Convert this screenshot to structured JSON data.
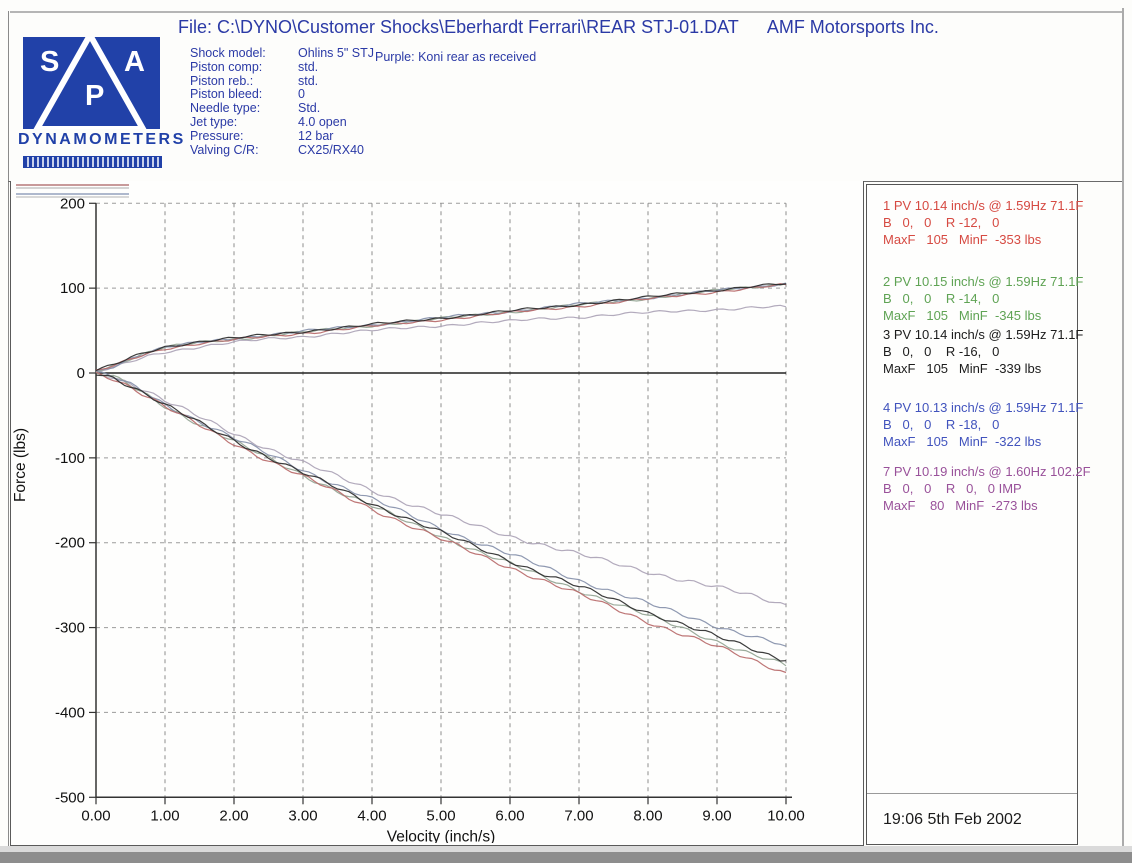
{
  "page": {
    "file_line": "File: C:\\DYNO\\Customer Shocks\\Eberhardt Ferrari\\REAR STJ-01.DAT",
    "company": "AMF Motorsports Inc.",
    "purple_note": "Purple: Koni rear as received",
    "timestamp": "19:06  5th Feb 2002"
  },
  "logo": {
    "letters": [
      "S",
      "P",
      "A"
    ],
    "subtitle": "DYNAMOMETERS",
    "blue": "#2141a8"
  },
  "shock_info": {
    "rows": [
      {
        "label": "Shock model:",
        "value": "Ohlins 5\" STJ"
      },
      {
        "label": "Piston comp:",
        "value": "std."
      },
      {
        "label": "Piston reb.:",
        "value": "std."
      },
      {
        "label": "Piston bleed:",
        "value": "0"
      },
      {
        "label": "Needle type:",
        "value": "Std."
      },
      {
        "label": "Jet type:",
        "value": "4.0 open"
      },
      {
        "label": "Pressure:",
        "value": "12 bar"
      },
      {
        "label": "Valving C/R:",
        "value": "CX25/RX40"
      }
    ]
  },
  "chart_data": {
    "type": "line",
    "title": "Shock dyno force vs velocity",
    "xlabel": "Velocity (inch/s)",
    "ylabel": "Force (lbs)",
    "xlim": [
      0,
      10
    ],
    "ylim": [
      -500,
      200
    ],
    "grid": "dashed",
    "legend_position": "right panel",
    "xtick_values": [
      0,
      1,
      2,
      3,
      4,
      5,
      6,
      7,
      8,
      9,
      10
    ],
    "xtick_labels": [
      "0.00",
      "1.00",
      "2.00",
      "3.00",
      "4.00",
      "5.00",
      "6.00",
      "7.00",
      "8.00",
      "9.00",
      "10.00"
    ],
    "ytick_values": [
      200,
      100,
      0,
      -100,
      -200,
      -300,
      -400,
      -500
    ],
    "ytick_labels": [
      "200",
      "100",
      "0",
      "-100",
      "-200",
      "-300",
      "-400",
      "-500"
    ],
    "series": [
      {
        "name": "1",
        "color_plot": "#b96a6a",
        "color_text": "#d64a42",
        "compression": [
          [
            0,
            2
          ],
          [
            0.25,
            8
          ],
          [
            0.5,
            16
          ],
          [
            0.75,
            23
          ],
          [
            1,
            29
          ],
          [
            1.5,
            35
          ],
          [
            2,
            39
          ],
          [
            2.5,
            43
          ],
          [
            3,
            47
          ],
          [
            3.5,
            51
          ],
          [
            4,
            55
          ],
          [
            4.5,
            59
          ],
          [
            5,
            63
          ],
          [
            5.5,
            67
          ],
          [
            6,
            71
          ],
          [
            6.5,
            75
          ],
          [
            7,
            79
          ],
          [
            7.5,
            83
          ],
          [
            8,
            87
          ],
          [
            8.5,
            92
          ],
          [
            9,
            96
          ],
          [
            9.5,
            100
          ],
          [
            10,
            104
          ]
        ],
        "rebound": [
          [
            0,
            0
          ],
          [
            0.25,
            -6
          ],
          [
            0.5,
            -16
          ],
          [
            0.75,
            -28
          ],
          [
            1,
            -40
          ],
          [
            1.5,
            -62
          ],
          [
            2,
            -83
          ],
          [
            2.5,
            -103
          ],
          [
            3,
            -122
          ],
          [
            3.5,
            -141
          ],
          [
            4,
            -160
          ],
          [
            4.5,
            -178
          ],
          [
            5,
            -196
          ],
          [
            5.5,
            -213
          ],
          [
            6,
            -229
          ],
          [
            6.5,
            -245
          ],
          [
            7,
            -261
          ],
          [
            7.5,
            -277
          ],
          [
            8,
            -293
          ],
          [
            8.5,
            -308
          ],
          [
            9,
            -323
          ],
          [
            9.5,
            -338
          ],
          [
            10,
            -353
          ]
        ]
      },
      {
        "name": "2",
        "color_plot": "#93a493",
        "color_text": "#5fa354",
        "compression": [
          [
            0,
            3
          ],
          [
            0.25,
            9
          ],
          [
            0.5,
            17
          ],
          [
            0.75,
            24
          ],
          [
            1,
            30
          ],
          [
            1.5,
            36
          ],
          [
            2,
            40
          ],
          [
            2.5,
            44
          ],
          [
            3,
            48
          ],
          [
            3.5,
            52
          ],
          [
            4,
            56
          ],
          [
            4.5,
            60
          ],
          [
            5,
            64
          ],
          [
            5.5,
            68
          ],
          [
            6,
            72
          ],
          [
            6.5,
            76
          ],
          [
            7,
            80
          ],
          [
            7.5,
            84
          ],
          [
            8,
            88
          ],
          [
            8.5,
            93
          ],
          [
            9,
            97
          ],
          [
            9.5,
            101
          ],
          [
            10,
            105
          ]
        ],
        "rebound": [
          [
            0,
            0
          ],
          [
            0.25,
            -5
          ],
          [
            0.5,
            -15
          ],
          [
            0.75,
            -27
          ],
          [
            1,
            -39
          ],
          [
            1.5,
            -60
          ],
          [
            2,
            -81
          ],
          [
            2.5,
            -101
          ],
          [
            3,
            -120
          ],
          [
            3.5,
            -139
          ],
          [
            4,
            -157
          ],
          [
            4.5,
            -175
          ],
          [
            5,
            -192
          ],
          [
            5.5,
            -209
          ],
          [
            6,
            -225
          ],
          [
            6.5,
            -241
          ],
          [
            7,
            -256
          ],
          [
            7.5,
            -271
          ],
          [
            8,
            -286
          ],
          [
            8.5,
            -301
          ],
          [
            9,
            -316
          ],
          [
            9.5,
            -331
          ],
          [
            10,
            -345
          ]
        ]
      },
      {
        "name": "3",
        "color_plot": "#2b2b2b",
        "color_text": "#1c1c1c",
        "compression": [
          [
            0,
            3
          ],
          [
            0.25,
            9
          ],
          [
            0.5,
            18
          ],
          [
            0.75,
            25
          ],
          [
            1,
            31
          ],
          [
            1.5,
            37
          ],
          [
            2,
            41
          ],
          [
            2.5,
            45
          ],
          [
            3,
            49
          ],
          [
            3.5,
            53
          ],
          [
            4,
            57
          ],
          [
            4.5,
            61
          ],
          [
            5,
            65
          ],
          [
            5.5,
            69
          ],
          [
            6,
            73
          ],
          [
            6.5,
            77
          ],
          [
            7,
            81
          ],
          [
            7.5,
            85
          ],
          [
            8,
            89
          ],
          [
            8.5,
            94
          ],
          [
            9,
            98
          ],
          [
            9.5,
            102
          ],
          [
            10,
            105
          ]
        ],
        "rebound": [
          [
            0,
            0
          ],
          [
            0.25,
            -5
          ],
          [
            0.5,
            -15
          ],
          [
            0.75,
            -26
          ],
          [
            1,
            -38
          ],
          [
            1.5,
            -59
          ],
          [
            2,
            -79
          ],
          [
            2.5,
            -99
          ],
          [
            3,
            -118
          ],
          [
            3.5,
            -136
          ],
          [
            4,
            -154
          ],
          [
            4.5,
            -171
          ],
          [
            5,
            -188
          ],
          [
            5.5,
            -205
          ],
          [
            6,
            -221
          ],
          [
            6.5,
            -237
          ],
          [
            7,
            -252
          ],
          [
            7.5,
            -267
          ],
          [
            8,
            -282
          ],
          [
            8.5,
            -296
          ],
          [
            9,
            -311
          ],
          [
            9.5,
            -325
          ],
          [
            10,
            -339
          ]
        ]
      },
      {
        "name": "4",
        "color_plot": "#8690aa",
        "color_text": "#4153bd",
        "compression": [
          [
            0,
            2
          ],
          [
            0.25,
            8
          ],
          [
            0.5,
            17
          ],
          [
            0.75,
            24
          ],
          [
            1,
            30
          ],
          [
            1.5,
            36
          ],
          [
            2,
            41
          ],
          [
            2.5,
            45
          ],
          [
            3,
            49
          ],
          [
            3.5,
            53
          ],
          [
            4,
            57
          ],
          [
            4.5,
            61
          ],
          [
            5,
            65
          ],
          [
            5.5,
            69
          ],
          [
            6,
            73
          ],
          [
            6.5,
            77
          ],
          [
            7,
            81
          ],
          [
            7.5,
            85
          ],
          [
            8,
            89
          ],
          [
            8.5,
            93
          ],
          [
            9,
            97
          ],
          [
            9.5,
            101
          ],
          [
            10,
            106
          ]
        ],
        "rebound": [
          [
            0,
            0
          ],
          [
            0.25,
            -5
          ],
          [
            0.5,
            -14
          ],
          [
            0.75,
            -25
          ],
          [
            1,
            -37
          ],
          [
            1.5,
            -57
          ],
          [
            2,
            -77
          ],
          [
            2.5,
            -96
          ],
          [
            3,
            -114
          ],
          [
            3.5,
            -132
          ],
          [
            4,
            -149
          ],
          [
            4.5,
            -166
          ],
          [
            5,
            -183
          ],
          [
            5.5,
            -199
          ],
          [
            6,
            -214
          ],
          [
            6.5,
            -229
          ],
          [
            7,
            -244
          ],
          [
            7.5,
            -258
          ],
          [
            8,
            -272
          ],
          [
            8.5,
            -285
          ],
          [
            9,
            -298
          ],
          [
            9.5,
            -310
          ],
          [
            10,
            -322
          ]
        ]
      },
      {
        "name": "7",
        "color_plot": "#aba3b6",
        "color_text": "#99519a",
        "compression": [
          [
            0,
            1
          ],
          [
            0.25,
            6
          ],
          [
            0.5,
            13
          ],
          [
            0.75,
            20
          ],
          [
            1,
            25
          ],
          [
            1.5,
            31
          ],
          [
            2,
            36
          ],
          [
            2.5,
            40
          ],
          [
            3,
            43
          ],
          [
            3.5,
            47
          ],
          [
            4,
            50
          ],
          [
            4.5,
            53
          ],
          [
            5,
            56
          ],
          [
            5.5,
            59
          ],
          [
            6,
            61
          ],
          [
            6.5,
            64
          ],
          [
            7,
            66
          ],
          [
            7.5,
            69
          ],
          [
            8,
            71
          ],
          [
            8.5,
            73
          ],
          [
            9,
            75
          ],
          [
            9.5,
            77
          ],
          [
            10,
            78
          ]
        ],
        "rebound": [
          [
            0,
            0
          ],
          [
            0.25,
            -4
          ],
          [
            0.5,
            -12
          ],
          [
            0.75,
            -22
          ],
          [
            1,
            -33
          ],
          [
            1.5,
            -52
          ],
          [
            2,
            -71
          ],
          [
            2.5,
            -89
          ],
          [
            3,
            -106
          ],
          [
            3.5,
            -122
          ],
          [
            4,
            -138
          ],
          [
            4.5,
            -153
          ],
          [
            5,
            -167
          ],
          [
            5.5,
            -180
          ],
          [
            6,
            -192
          ],
          [
            6.5,
            -203
          ],
          [
            7,
            -214
          ],
          [
            7.5,
            -224
          ],
          [
            8,
            -234
          ],
          [
            8.5,
            -244
          ],
          [
            9,
            -253
          ],
          [
            9.5,
            -262
          ],
          [
            10,
            -273
          ]
        ]
      }
    ]
  },
  "legend": {
    "entries": [
      {
        "color": "#d64a42",
        "lines": [
          "1 PV 10.14 inch/s @ 1.59Hz 71.1F",
          "B   0,   0    R -12,   0",
          "MaxF   105   MinF  -353 lbs"
        ]
      },
      {
        "color": "#5fa354",
        "lines": [
          "2 PV 10.15 inch/s @ 1.59Hz 71.1F",
          "B   0,   0    R -14,   0",
          "MaxF   105   MinF  -345 lbs"
        ]
      },
      {
        "color": "#1c1c1c",
        "lines": [
          "3 PV 10.14 inch/s @ 1.59Hz 71.1F",
          "B   0,   0    R -16,   0",
          "MaxF   105   MinF  -339 lbs"
        ]
      },
      {
        "color": "#4153bd",
        "lines": [
          "4 PV 10.13 inch/s @ 1.59Hz 71.1F",
          "B   0,   0    R -18,   0",
          "MaxF   105   MinF  -322 lbs"
        ]
      },
      {
        "color": "#99519a",
        "lines": [
          "7 PV 10.19 inch/s @ 1.60Hz 102.2F",
          "B   0,   0    R   0,   0 IMP",
          "MaxF    80   MinF  -273 lbs"
        ]
      }
    ]
  }
}
